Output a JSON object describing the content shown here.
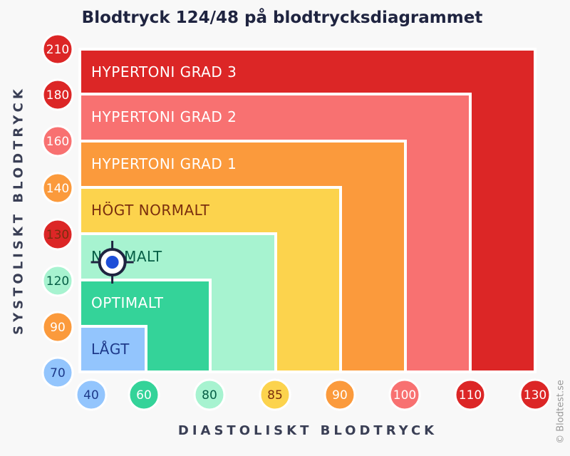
{
  "title": "Blodtryck 124/48 på blodtrycksdiagrammet",
  "ylabel": "SYSTOLISKT BLODTRYCK",
  "xlabel": "DIASTOLISKT BLODTRYCK",
  "credit": "© Blodtest.se",
  "chart_data": {
    "type": "heatmap",
    "title": "Blodtryck 124/48 på blodtrycksdiagrammet",
    "xlabel": "DIASTOLISKT BLODTRYCK",
    "ylabel": "SYSTOLISKT BLODTRYCK",
    "x_ticks": [
      "40",
      "60",
      "80",
      "85",
      "90",
      "100",
      "110",
      "130"
    ],
    "y_ticks": [
      "70",
      "90",
      "120",
      "130",
      "140",
      "160",
      "180",
      "210"
    ],
    "zones": [
      {
        "label": "HYPERTONI GRAD 3",
        "max_diastolic": "130",
        "max_systolic": "210",
        "color": "#dc2626",
        "text_color": "#ffffff"
      },
      {
        "label": "HYPERTONI GRAD 2",
        "max_diastolic": "110",
        "max_systolic": "180",
        "color": "#f87171",
        "text_color": "#ffffff"
      },
      {
        "label": "HYPERTONI GRAD 1",
        "max_diastolic": "100",
        "max_systolic": "160",
        "color": "#fb9a3c",
        "text_color": "#ffffff"
      },
      {
        "label": "HÖGT NORMALT",
        "max_diastolic": "90",
        "max_systolic": "140",
        "color": "#fcd34d",
        "text_color": "#7a2e0e"
      },
      {
        "label": "NORMALT",
        "max_diastolic": "85",
        "max_systolic": "130",
        "color": "#a7f3d0",
        "text_color": "#065f46"
      },
      {
        "label": "OPTIMALT",
        "max_diastolic": "80",
        "max_systolic": "120",
        "color": "#34d399",
        "text_color": "#ffffff"
      },
      {
        "label": "LÅGT",
        "max_diastolic": "60",
        "max_systolic": "90",
        "color": "#93c5fd",
        "text_color": "#1e3a8a"
      }
    ],
    "tick_colors": {
      "40": "#93c5fd",
      "60": "#34d399",
      "80": "#a7f3d0",
      "85": "#fcd34d",
      "90": "#fb9a3c",
      "100": "#f87171",
      "110": "#dc2626",
      "130": "#dc2626",
      "70": "#93c5fd",
      "120": "#a7f3d0",
      "140": "#fb9a3c",
      "160": "#f87171",
      "180": "#dc2626",
      "210": "#dc2626"
    },
    "tick_text_colors": {
      "y": {
        "70": "#1e3a8a",
        "90": "#ffffff",
        "120": "#065f46",
        "130": "#7a2e0e",
        "140": "#ffffff",
        "160": "#ffffff",
        "180": "#ffffff",
        "210": "#ffffff"
      },
      "x": {
        "40": "#1e3a8a",
        "60": "#ffffff",
        "80": "#065f46",
        "85": "#7a2e0e",
        "90": "#ffffff",
        "100": "#ffffff",
        "110": "#ffffff",
        "130": "#ffffff"
      }
    },
    "marker": {
      "systolic": 124,
      "diastolic": 48,
      "color": "#1d4ed8",
      "ring_color": "#1f2440"
    }
  }
}
